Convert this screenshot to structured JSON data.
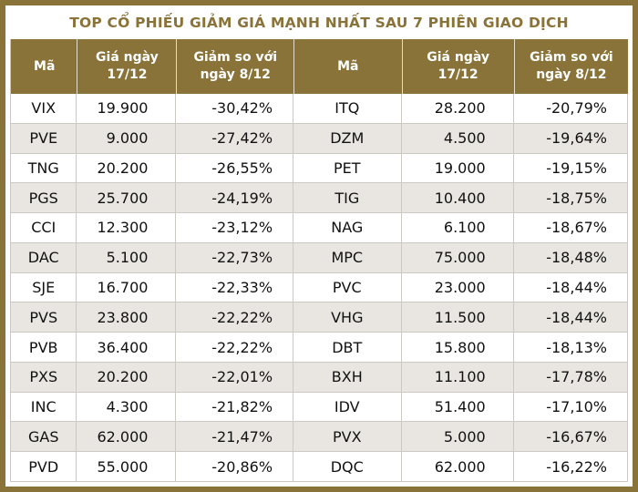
{
  "title": "TOP CỔ PHIẾU GIẢM GIÁ MẠNH NHẤT SAU 7 PHIÊN GIAO DỊCH",
  "colors": {
    "accent": "#8a7339",
    "header_text": "#ffffff",
    "row_alt_bg": "#e9e6e1",
    "grid": "#ccc9c2",
    "body_text": "#111111"
  },
  "headers": {
    "code": "Mã",
    "price_line1": "Giá ngày",
    "price_line2": "17/12",
    "change_line1": "Giảm so với",
    "change_line2": "ngày 8/12"
  },
  "chart_data": {
    "type": "table",
    "title": "TOP CỔ PHIẾU GIẢM GIÁ MẠNH NHẤT SAU 7 PHIÊN GIAO DỊCH",
    "columns": [
      "Mã",
      "Giá ngày 17/12",
      "Giảm so với ngày 8/12",
      "Mã",
      "Giá ngày 17/12",
      "Giảm so với ngày 8/12"
    ],
    "rows": [
      [
        "VIX",
        "19.900",
        "-30,42%",
        "ITQ",
        "28.200",
        "-20,79%"
      ],
      [
        "PVE",
        "9.000",
        "-27,42%",
        "DZM",
        "4.500",
        "-19,64%"
      ],
      [
        "TNG",
        "20.200",
        "-26,55%",
        "PET",
        "19.000",
        "-19,15%"
      ],
      [
        "PGS",
        "25.700",
        "-24,19%",
        "TIG",
        "10.400",
        "-18,75%"
      ],
      [
        "CCI",
        "12.300",
        "-23,12%",
        "NAG",
        "6.100",
        "-18,67%"
      ],
      [
        "DAC",
        "5.100",
        "-22,73%",
        "MPC",
        "75.000",
        "-18,48%"
      ],
      [
        "SJE",
        "16.700",
        "-22,33%",
        "PVC",
        "23.000",
        "-18,44%"
      ],
      [
        "PVS",
        "23.800",
        "-22,22%",
        "VHG",
        "11.500",
        "-18,44%"
      ],
      [
        "PVB",
        "36.400",
        "-22,22%",
        "DBT",
        "15.800",
        "-18,13%"
      ],
      [
        "PXS",
        "20.200",
        "-22,01%",
        "BXH",
        "11.100",
        "-17,78%"
      ],
      [
        "INC",
        "4.300",
        "-21,82%",
        "IDV",
        "51.400",
        "-17,10%"
      ],
      [
        "GAS",
        "62.000",
        "-21,47%",
        "PVX",
        "5.000",
        "-16,67%"
      ],
      [
        "PVD",
        "55.000",
        "-20,86%",
        "DQC",
        "62.000",
        "-16,22%"
      ]
    ]
  }
}
